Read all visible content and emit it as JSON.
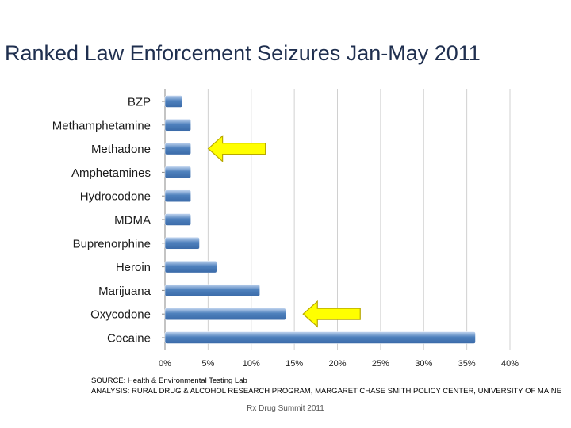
{
  "slide": {
    "title": "Ranked Law Enforcement Seizures Jan-May 2011",
    "source_line": "SOURCE: Health & Environmental Testing Lab",
    "analysis_line": "ANALYSIS: RURAL DRUG & ALCOHOL RESEARCH PROGRAM, MARGARET CHASE SMITH POLICY CENTER, UNIVERSITY OF MAINE",
    "footer": "Rx Drug Summit 2011"
  },
  "chart_data": {
    "type": "bar",
    "orientation": "horizontal",
    "title": "Ranked Law Enforcement Seizures Jan-May 2011",
    "categories": [
      "BZP",
      "Methamphetamine",
      "Methadone",
      "Amphetamines",
      "Hydrocodone",
      "MDMA",
      "Buprenorphine",
      "Heroin",
      "Marijuana",
      "Oxycodone",
      "Cocaine"
    ],
    "values": [
      2,
      3,
      3,
      3,
      3,
      3,
      4,
      6,
      11,
      14,
      36
    ],
    "value_unit": "percent",
    "xlim": [
      0,
      40
    ],
    "xticks": [
      "0%",
      "5%",
      "10%",
      "15%",
      "20%",
      "25%",
      "30%",
      "35%",
      "40%"
    ],
    "xlabel": "",
    "ylabel": "",
    "grid": true,
    "bar_color": "#4f81bd",
    "highlight_arrows": [
      "Methadone",
      "Oxycodone"
    ],
    "arrow_color": "#ffff00"
  }
}
